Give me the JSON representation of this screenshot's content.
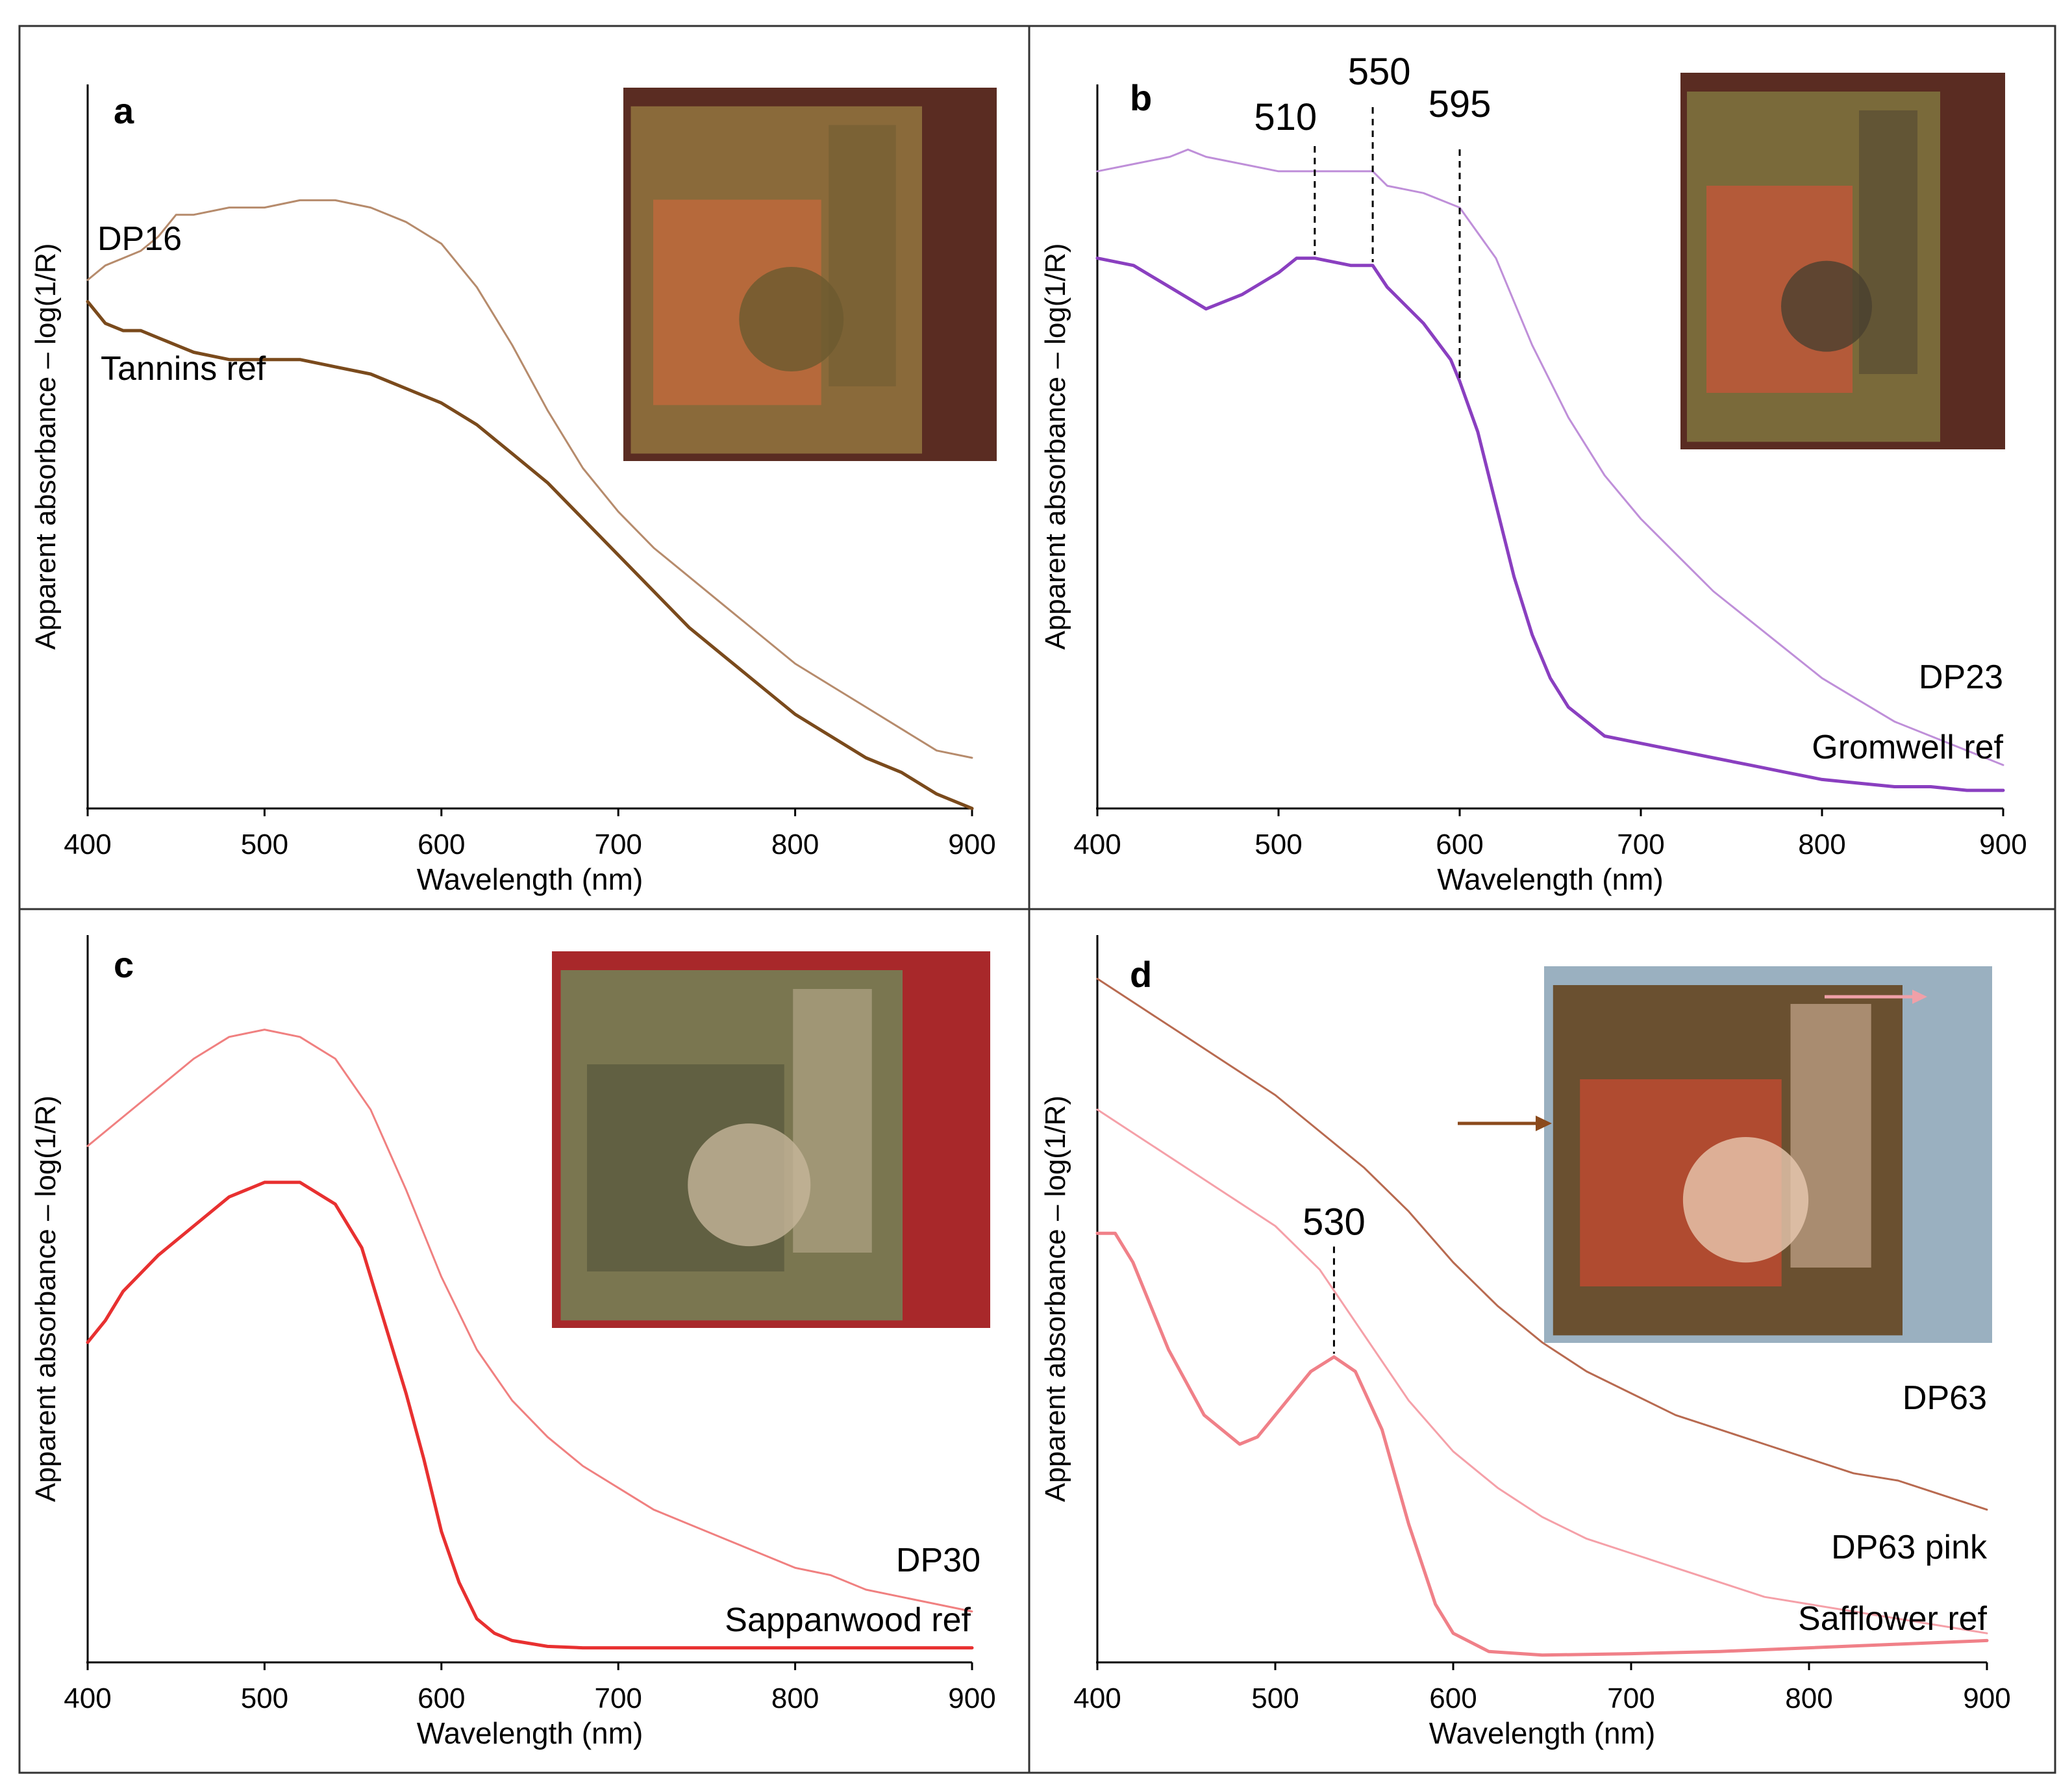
{
  "colors": {
    "frame": "#333333",
    "axis": "#000000",
    "label": "#000000"
  },
  "chart_data": [
    {
      "type": "line",
      "panel_letter": "a",
      "xlabel": "Wavelength (nm)",
      "ylabel": "Apparent absorbance – log(1/R)",
      "xlim": [
        400,
        900
      ],
      "ylim": [
        0,
        1
      ],
      "x_ticks": [
        "400",
        "500",
        "600",
        "700",
        "800",
        "900"
      ],
      "y_ticks_labeled": false,
      "grid": false,
      "photo_inset": "textile detail photograph (top-right)",
      "photo_colors": [
        "#5a2c22",
        "#8a6a3a",
        "#c46a3c",
        "#6b5a30"
      ],
      "series": [
        {
          "name": "DP16",
          "color": "#b68b6c",
          "width": 3,
          "x": [
            400,
            410,
            420,
            430,
            440,
            450,
            460,
            480,
            500,
            520,
            540,
            560,
            580,
            600,
            620,
            640,
            660,
            680,
            700,
            720,
            740,
            760,
            780,
            800,
            820,
            840,
            860,
            880,
            900
          ],
          "y": [
            0.73,
            0.75,
            0.76,
            0.77,
            0.79,
            0.82,
            0.82,
            0.83,
            0.83,
            0.84,
            0.84,
            0.83,
            0.81,
            0.78,
            0.72,
            0.64,
            0.55,
            0.47,
            0.41,
            0.36,
            0.32,
            0.28,
            0.24,
            0.2,
            0.17,
            0.14,
            0.11,
            0.08,
            0.07
          ]
        },
        {
          "name": "Tannins ref",
          "color": "#7a4a1c",
          "width": 5,
          "x": [
            400,
            410,
            420,
            430,
            440,
            450,
            460,
            480,
            500,
            520,
            540,
            560,
            580,
            600,
            620,
            640,
            660,
            680,
            700,
            720,
            740,
            760,
            780,
            800,
            820,
            840,
            860,
            880,
            900
          ],
          "y": [
            0.7,
            0.67,
            0.66,
            0.66,
            0.65,
            0.64,
            0.63,
            0.62,
            0.62,
            0.62,
            0.61,
            0.6,
            0.58,
            0.56,
            0.53,
            0.49,
            0.45,
            0.4,
            0.35,
            0.3,
            0.25,
            0.21,
            0.17,
            0.13,
            0.1,
            0.07,
            0.05,
            0.02,
            0.0
          ]
        }
      ]
    },
    {
      "type": "line",
      "panel_letter": "b",
      "xlabel": "Wavelength (nm)",
      "ylabel": "Apparent absorbance – log(1/R)",
      "xlim": [
        400,
        900
      ],
      "ylim": [
        0,
        1
      ],
      "x_ticks": [
        "400",
        "500",
        "600",
        "700",
        "800",
        "900"
      ],
      "y_ticks_labeled": false,
      "grid": false,
      "photo_inset": "textile painting detail photograph (top-right)",
      "photo_colors": [
        "#5a2c22",
        "#7a6a3a",
        "#c8553a",
        "#4a4030"
      ],
      "annotations": [
        {
          "label": "510",
          "x": 520
        },
        {
          "label": "550",
          "x": 552
        },
        {
          "label": "595",
          "x": 600
        }
      ],
      "series": [
        {
          "name": "DP23",
          "color": "#bf8fd9",
          "width": 3,
          "x": [
            400,
            420,
            440,
            450,
            460,
            480,
            500,
            520,
            540,
            552,
            560,
            580,
            600,
            620,
            640,
            660,
            680,
            700,
            720,
            740,
            760,
            780,
            800,
            820,
            840,
            860,
            880,
            900
          ],
          "y": [
            0.88,
            0.89,
            0.9,
            0.91,
            0.9,
            0.89,
            0.88,
            0.88,
            0.88,
            0.88,
            0.86,
            0.85,
            0.83,
            0.76,
            0.64,
            0.54,
            0.46,
            0.4,
            0.35,
            0.3,
            0.26,
            0.22,
            0.18,
            0.15,
            0.12,
            0.1,
            0.08,
            0.06
          ]
        },
        {
          "name": "Gromwell ref",
          "color": "#8a3fc0",
          "width": 5,
          "x": [
            400,
            420,
            440,
            460,
            480,
            500,
            510,
            520,
            540,
            552,
            560,
            580,
            595,
            600,
            610,
            620,
            630,
            640,
            650,
            660,
            680,
            700,
            720,
            740,
            760,
            780,
            800,
            820,
            840,
            860,
            880,
            900
          ],
          "y": [
            0.76,
            0.75,
            0.72,
            0.69,
            0.71,
            0.74,
            0.76,
            0.76,
            0.75,
            0.75,
            0.72,
            0.67,
            0.62,
            0.59,
            0.52,
            0.42,
            0.32,
            0.24,
            0.18,
            0.14,
            0.1,
            0.09,
            0.08,
            0.07,
            0.06,
            0.05,
            0.04,
            0.035,
            0.03,
            0.03,
            0.025,
            0.025
          ]
        }
      ]
    },
    {
      "type": "line",
      "panel_letter": "c",
      "xlabel": "Wavelength (nm)",
      "ylabel": "Apparent absorbance – log(1/R)",
      "xlim": [
        400,
        900
      ],
      "ylim": [
        0,
        1
      ],
      "x_ticks": [
        "400",
        "500",
        "600",
        "700",
        "800",
        "900"
      ],
      "y_ticks_labeled": false,
      "grid": false,
      "photo_inset": "textile painting detail photograph (top-right)",
      "photo_colors": [
        "#a8282a",
        "#7a7650",
        "#5a5a3e",
        "#c5b59a"
      ],
      "series": [
        {
          "name": "DP30",
          "color": "#f08080",
          "width": 3,
          "x": [
            400,
            420,
            440,
            460,
            480,
            500,
            520,
            540,
            560,
            580,
            600,
            620,
            640,
            660,
            680,
            700,
            720,
            740,
            760,
            780,
            800,
            820,
            840,
            860,
            880,
            900
          ],
          "y": [
            0.71,
            0.75,
            0.79,
            0.83,
            0.86,
            0.87,
            0.86,
            0.83,
            0.76,
            0.65,
            0.53,
            0.43,
            0.36,
            0.31,
            0.27,
            0.24,
            0.21,
            0.19,
            0.17,
            0.15,
            0.13,
            0.12,
            0.1,
            0.09,
            0.08,
            0.07
          ]
        },
        {
          "name": "Sappanwood ref",
          "color": "#e83030",
          "width": 5,
          "x": [
            400,
            410,
            420,
            440,
            460,
            480,
            500,
            520,
            540,
            555,
            570,
            580,
            590,
            600,
            610,
            620,
            630,
            640,
            660,
            680,
            700,
            750,
            800,
            850,
            900
          ],
          "y": [
            0.44,
            0.47,
            0.51,
            0.56,
            0.6,
            0.64,
            0.66,
            0.66,
            0.63,
            0.57,
            0.45,
            0.37,
            0.28,
            0.18,
            0.11,
            0.06,
            0.04,
            0.03,
            0.022,
            0.02,
            0.02,
            0.02,
            0.02,
            0.02,
            0.02
          ]
        }
      ]
    },
    {
      "type": "line",
      "panel_letter": "d",
      "xlabel": "Wavelength (nm)",
      "ylabel": "Apparent absorbance – log(1/R)",
      "xlim": [
        400,
        900
      ],
      "ylim": [
        0,
        1
      ],
      "x_ticks": [
        "400",
        "500",
        "600",
        "700",
        "800",
        "900"
      ],
      "y_ticks_labeled": false,
      "grid": false,
      "photo_inset": "textile banner photograph with arrows (top-right)",
      "photo_colors": [
        "#9ab0c0",
        "#6a5030",
        "#c84a30",
        "#e8c8b0"
      ],
      "annotations": [
        {
          "label": "530",
          "x": 533
        }
      ],
      "series": [
        {
          "name": "DP63",
          "color": "#b86a50",
          "width": 3,
          "x": [
            400,
            425,
            450,
            475,
            500,
            525,
            550,
            575,
            600,
            625,
            650,
            675,
            700,
            725,
            750,
            775,
            800,
            825,
            850,
            875,
            900
          ],
          "y": [
            0.94,
            0.9,
            0.86,
            0.82,
            0.78,
            0.73,
            0.68,
            0.62,
            0.55,
            0.49,
            0.44,
            0.4,
            0.37,
            0.34,
            0.32,
            0.3,
            0.28,
            0.26,
            0.25,
            0.23,
            0.21
          ]
        },
        {
          "name": "DP63 pink",
          "color": "#f5a0a8",
          "width": 3,
          "x": [
            400,
            425,
            450,
            475,
            500,
            525,
            550,
            575,
            600,
            625,
            650,
            675,
            700,
            725,
            750,
            775,
            800,
            825,
            850,
            875,
            900
          ],
          "y": [
            0.76,
            0.72,
            0.68,
            0.64,
            0.6,
            0.54,
            0.45,
            0.36,
            0.29,
            0.24,
            0.2,
            0.17,
            0.15,
            0.13,
            0.11,
            0.09,
            0.08,
            0.07,
            0.06,
            0.05,
            0.04
          ]
        },
        {
          "name": "Safflower ref",
          "color": "#f08088",
          "width": 5,
          "x": [
            400,
            410,
            420,
            440,
            460,
            480,
            490,
            500,
            510,
            520,
            533,
            545,
            560,
            575,
            590,
            600,
            620,
            650,
            700,
            750,
            800,
            850,
            900
          ],
          "y": [
            0.59,
            0.59,
            0.55,
            0.43,
            0.34,
            0.3,
            0.31,
            0.34,
            0.37,
            0.4,
            0.42,
            0.4,
            0.32,
            0.19,
            0.08,
            0.04,
            0.015,
            0.01,
            0.012,
            0.015,
            0.02,
            0.025,
            0.03
          ]
        }
      ]
    }
  ]
}
